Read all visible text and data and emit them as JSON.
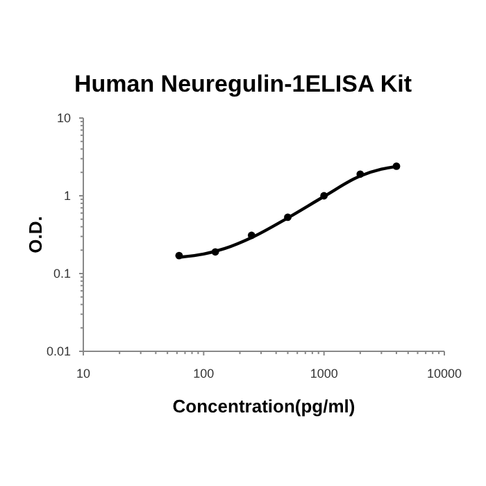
{
  "chart_data": {
    "type": "scatter",
    "title": "Human Neuregulin-1ELISA Kit",
    "xlabel": "Concentration(pg/ml)",
    "ylabel": "O.D.",
    "log": "xy",
    "grid": false,
    "xlim": [
      10,
      10000
    ],
    "ylim": [
      0.01,
      10
    ],
    "xticks": [
      10,
      {
        "value": 20,
        "label": null
      },
      {
        "value": 30,
        "label": null
      },
      {
        "value": 40,
        "label": null
      },
      {
        "value": 50,
        "label": null
      },
      {
        "value": 60,
        "label": null
      },
      {
        "value": 70,
        "label": null
      },
      {
        "value": 80,
        "label": null
      },
      {
        "value": 90,
        "label": null
      },
      100,
      {
        "value": 200,
        "label": null
      },
      {
        "value": 300,
        "label": null
      },
      {
        "value": 400,
        "label": null
      },
      {
        "value": 500,
        "label": null
      },
      {
        "value": 600,
        "label": null
      },
      {
        "value": 700,
        "label": null
      },
      {
        "value": 800,
        "label": null
      },
      {
        "value": 900,
        "label": null
      },
      1000,
      {
        "value": 2000,
        "label": null
      },
      {
        "value": 3000,
        "label": null
      },
      {
        "value": 4000,
        "label": null
      },
      {
        "value": 5000,
        "label": null
      },
      {
        "value": 6000,
        "label": null
      },
      {
        "value": 7000,
        "label": null
      },
      {
        "value": 8000,
        "label": null
      },
      {
        "value": 9000,
        "label": null
      },
      10000
    ],
    "yticks": [
      0.01,
      {
        "value": 0.02,
        "label": null
      },
      {
        "value": 0.03,
        "label": null
      },
      {
        "value": 0.04,
        "label": null
      },
      {
        "value": 0.05,
        "label": null
      },
      {
        "value": 0.06,
        "label": null
      },
      {
        "value": 0.07,
        "label": null
      },
      {
        "value": 0.08,
        "label": null
      },
      {
        "value": 0.09,
        "label": null
      },
      0.1,
      {
        "value": 0.2,
        "label": null
      },
      {
        "value": 0.3,
        "label": null
      },
      {
        "value": 0.4,
        "label": null
      },
      {
        "value": 0.5,
        "label": null
      },
      {
        "value": 0.6,
        "label": null
      },
      {
        "value": 0.7,
        "label": null
      },
      {
        "value": 0.8,
        "label": null
      },
      {
        "value": 0.9,
        "label": null
      },
      1,
      {
        "value": 2,
        "label": null
      },
      {
        "value": 3,
        "label": null
      },
      {
        "value": 4,
        "label": null
      },
      {
        "value": 5,
        "label": null
      },
      {
        "value": 6,
        "label": null
      },
      {
        "value": 7,
        "label": null
      },
      {
        "value": 8,
        "label": null
      },
      {
        "value": 9,
        "label": null
      },
      10
    ],
    "series": [
      {
        "color": "#000000",
        "marker": "circle",
        "x": [
          62.5,
          125,
          250,
          500,
          1000,
          2000,
          4000
        ],
        "values": [
          0.17,
          0.19,
          0.31,
          0.53,
          1.0,
          1.9,
          2.4
        ]
      },
      {
        "type": "line",
        "color": "#000000",
        "marker": "none",
        "x": [
          65,
          100,
          150,
          250,
          500,
          1000,
          2000,
          3000,
          4000
        ],
        "values": [
          0.163,
          0.178,
          0.21,
          0.29,
          0.52,
          0.98,
          1.8,
          2.2,
          2.38
        ]
      }
    ]
  }
}
